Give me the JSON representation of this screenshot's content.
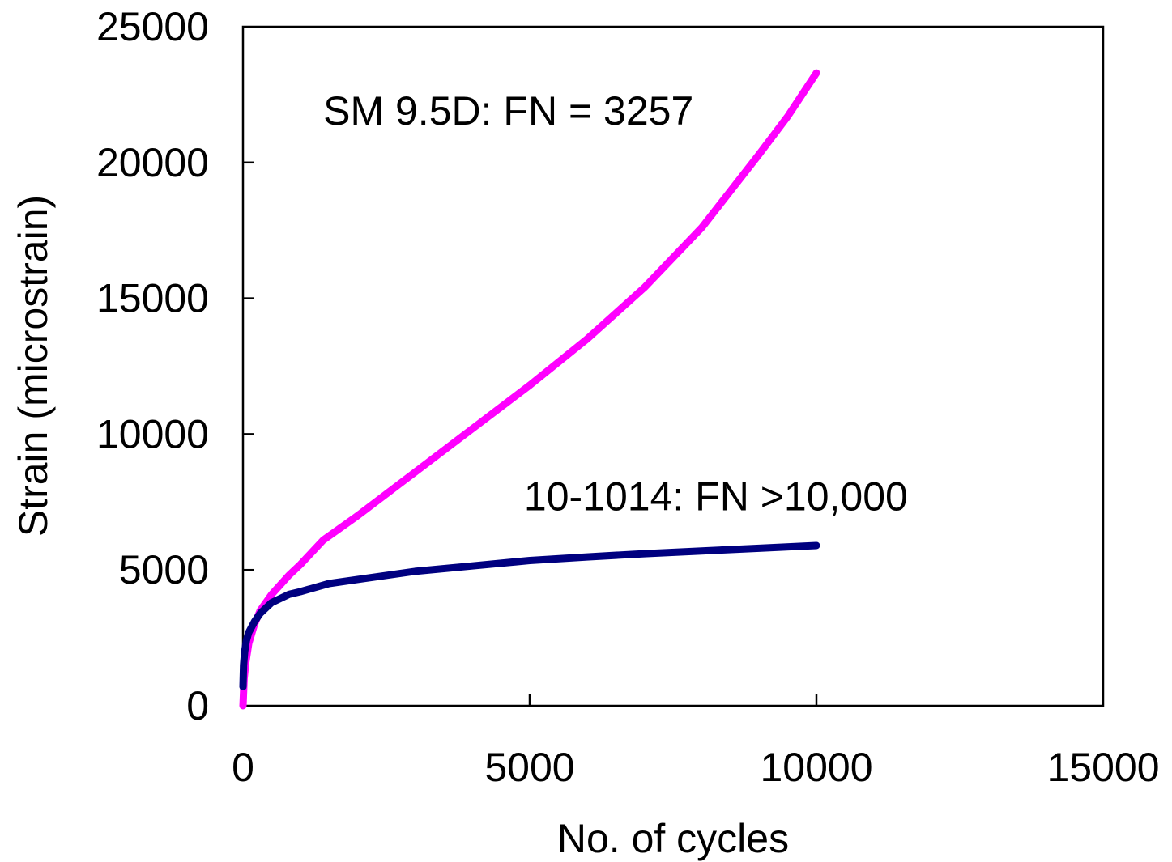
{
  "chart_data": {
    "type": "line",
    "title": "",
    "xlabel": "No. of cycles",
    "ylabel": "Strain (microstrain)",
    "xlim": [
      0,
      15000
    ],
    "ylim": [
      0,
      25000
    ],
    "xticks": [
      0,
      5000,
      10000,
      15000
    ],
    "yticks": [
      0,
      5000,
      10000,
      15000,
      20000,
      25000
    ],
    "xtick_labels": [
      "0",
      "5000",
      "10000",
      "15000"
    ],
    "ytick_labels": [
      "0",
      "5000",
      "10000",
      "15000",
      "20000",
      "25000"
    ],
    "grid": false,
    "legend": "none",
    "series": [
      {
        "color": "#ff00ff",
        "x": [
          0,
          20,
          50,
          100,
          200,
          300,
          500,
          800,
          1000,
          1400,
          2000,
          3000,
          4000,
          5000,
          6000,
          7000,
          8000,
          9000,
          9500,
          10000
        ],
        "y": [
          0,
          1000,
          1600,
          2300,
          3000,
          3500,
          4100,
          4800,
          5200,
          6100,
          7000,
          8600,
          10200,
          11800,
          13500,
          15400,
          17600,
          20300,
          21700,
          23300
        ]
      },
      {
        "color": "#000080",
        "x": [
          0,
          10,
          30,
          60,
          100,
          200,
          300,
          500,
          800,
          1000,
          1500,
          2000,
          3000,
          4000,
          5000,
          6000,
          7000,
          8000,
          9000,
          10000
        ],
        "y": [
          700,
          1500,
          2000,
          2400,
          2700,
          3100,
          3400,
          3800,
          4100,
          4200,
          4500,
          4650,
          4950,
          5150,
          5350,
          5480,
          5600,
          5700,
          5800,
          5900
        ]
      }
    ],
    "annotations": [
      {
        "text": "SM 9.5D: FN = 3257",
        "x": 1400,
        "y": 21900
      },
      {
        "text": "10-1014: FN >10,000",
        "x": 4900,
        "y": 7700
      }
    ]
  }
}
